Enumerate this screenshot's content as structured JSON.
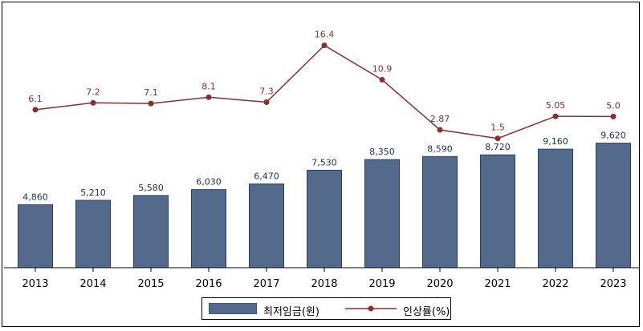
{
  "chart_data": {
    "type": "bar",
    "categories": [
      "2013",
      "2014",
      "2015",
      "2016",
      "2017",
      "2018",
      "2019",
      "2020",
      "2021",
      "2022",
      "2023"
    ],
    "series": [
      {
        "name": "최저임금(원)",
        "type": "bar",
        "values": [
          4860,
          5210,
          5580,
          6030,
          6470,
          7530,
          8350,
          8590,
          8720,
          9160,
          9620
        ],
        "labels": [
          "4,860",
          "5,210",
          "5,580",
          "6,030",
          "6,470",
          "7,530",
          "8,350",
          "8,590",
          "8,720",
          "9,160",
          "9,620"
        ]
      },
      {
        "name": "인상률(%)",
        "type": "line",
        "values": [
          6.1,
          7.2,
          7.1,
          8.1,
          7.3,
          16.4,
          10.9,
          2.87,
          1.5,
          5.05,
          5.0
        ],
        "labels": [
          "6.1",
          "7.2",
          "7.1",
          "8.1",
          "7.3",
          "16.4",
          "10.9",
          "2.87",
          "1.5",
          "5.05",
          "5.0"
        ]
      }
    ],
    "legend_position": "bottom-center",
    "grid": false,
    "colors": {
      "bar": "#536A8C",
      "bar_stroke": "#2E3F5C",
      "line": "#8B2E2E",
      "bar_label": "#1F3050",
      "line_label": "#8B2E2E"
    }
  }
}
